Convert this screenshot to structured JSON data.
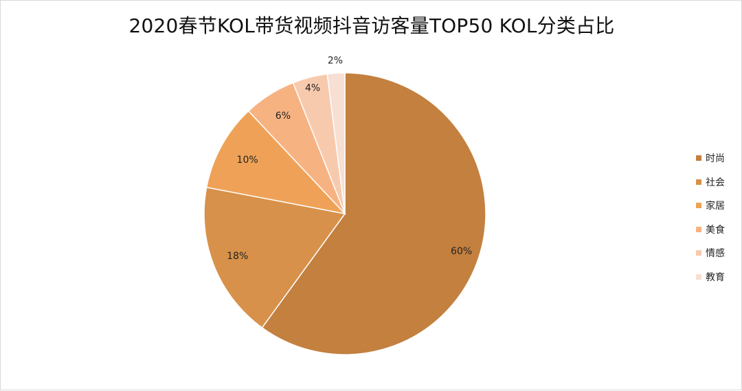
{
  "chart_data": {
    "type": "pie",
    "title": "2020春节KOL带货视频抖音访客量TOP50 KOL分类占比",
    "categories": [
      "时尚",
      "社会",
      "家居",
      "美食",
      "情感",
      "教育"
    ],
    "values": [
      60,
      18,
      10,
      6,
      4,
      2
    ],
    "labels": [
      "60%",
      "18%",
      "10%",
      "6%",
      "4%",
      "2%"
    ],
    "colors": [
      "#C3803F",
      "#D8914A",
      "#EFA257",
      "#F7B282",
      "#F8CAAD",
      "#F8DFD3"
    ],
    "legend_position": "right",
    "start_angle": "12 o'clock",
    "direction": "clockwise"
  }
}
